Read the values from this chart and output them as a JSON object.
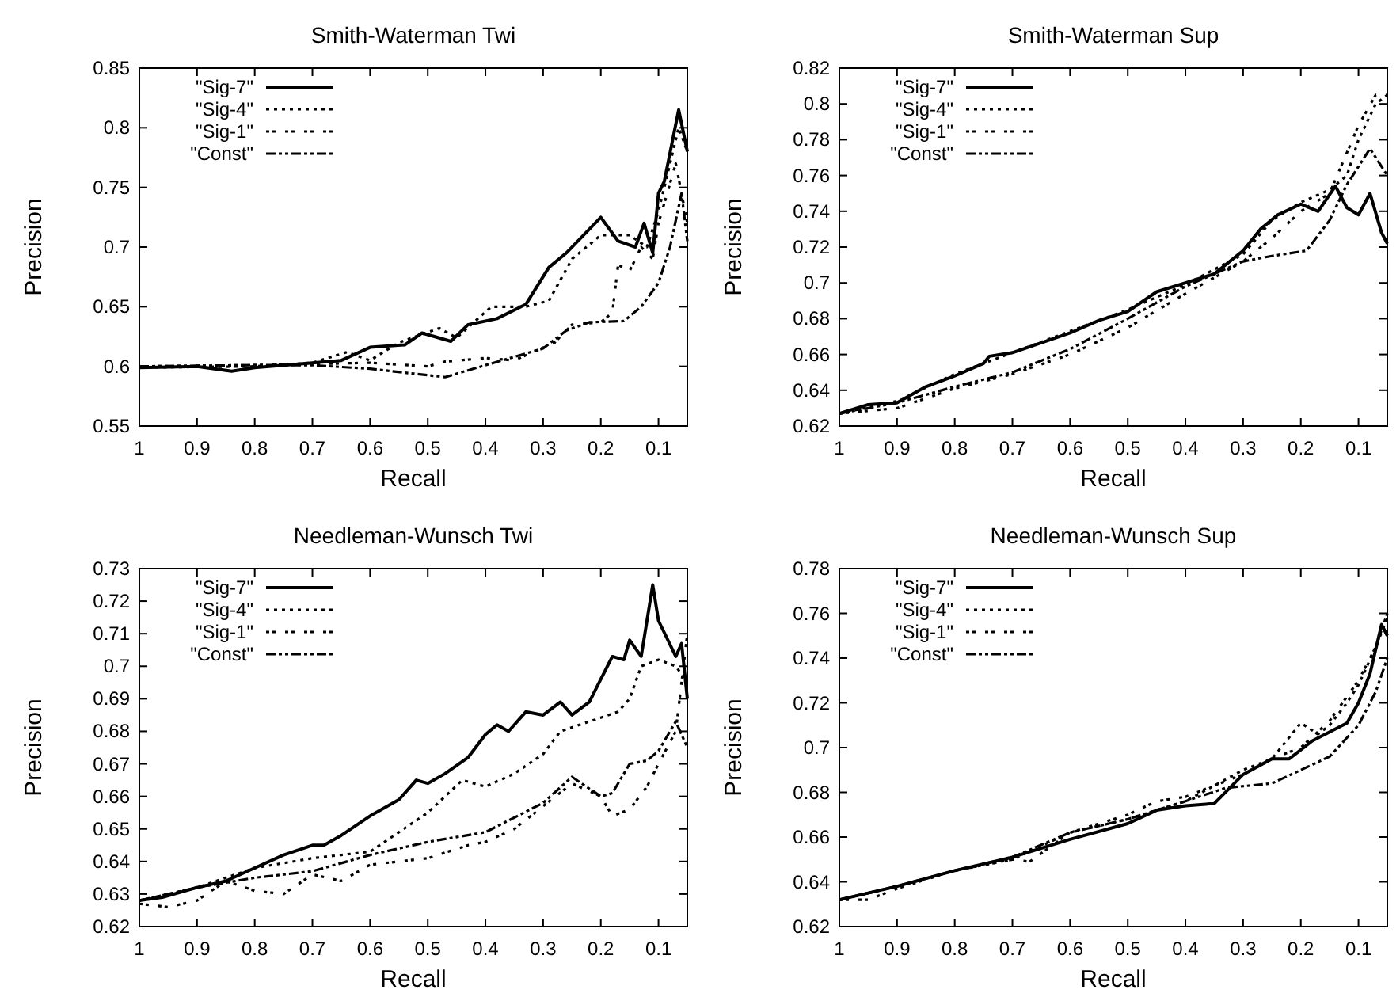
{
  "chart_data": [
    {
      "type": "line",
      "title": "Smith-Waterman Twi",
      "xlabel": "Recall",
      "ylabel": "Precision",
      "xlim": [
        1,
        0.05
      ],
      "xticks": [
        1,
        0.9,
        0.8,
        0.7,
        0.6,
        0.5,
        0.4,
        0.3,
        0.2,
        0.1
      ],
      "ylim": [
        0.55,
        0.85
      ],
      "yticks": [
        0.55,
        0.6,
        0.65,
        0.7,
        0.75,
        0.8,
        0.85
      ],
      "legend": "top left",
      "grid": false,
      "marker": "none",
      "series": [
        {
          "name": "\"Sig-7\"",
          "color": "#000000",
          "line_style": "solid",
          "x": [
            1,
            0.9,
            0.84,
            0.8,
            0.7,
            0.65,
            0.6,
            0.54,
            0.51,
            0.46,
            0.43,
            0.38,
            0.33,
            0.29,
            0.26,
            0.2,
            0.17,
            0.14,
            0.125,
            0.11,
            0.1,
            0.09,
            0.065,
            0.05
          ],
          "values": [
            0.599,
            0.6,
            0.596,
            0.599,
            0.603,
            0.605,
            0.616,
            0.618,
            0.628,
            0.621,
            0.635,
            0.64,
            0.652,
            0.683,
            0.695,
            0.725,
            0.705,
            0.7,
            0.72,
            0.695,
            0.745,
            0.755,
            0.815,
            0.78
          ]
        },
        {
          "name": "\"Sig-4\"",
          "color": "#000000",
          "line_style": "dotted",
          "x": [
            1,
            0.8,
            0.7,
            0.64,
            0.6,
            0.55,
            0.48,
            0.45,
            0.39,
            0.33,
            0.29,
            0.25,
            0.2,
            0.15,
            0.12,
            0.1,
            0.065,
            0.05
          ],
          "values": [
            0.599,
            0.6,
            0.603,
            0.612,
            0.605,
            0.62,
            0.632,
            0.624,
            0.65,
            0.65,
            0.655,
            0.69,
            0.71,
            0.71,
            0.7,
            0.73,
            0.8,
            0.78
          ]
        },
        {
          "name": "\"Sig-1\"",
          "color": "#000000",
          "line_style": "dashed",
          "x": [
            1,
            0.8,
            0.7,
            0.6,
            0.5,
            0.47,
            0.4,
            0.35,
            0.28,
            0.25,
            0.2,
            0.18,
            0.17,
            0.15,
            0.13,
            0.11,
            0.1,
            0.07,
            0.05
          ],
          "values": [
            0.6,
            0.601,
            0.602,
            0.603,
            0.6,
            0.604,
            0.607,
            0.605,
            0.62,
            0.635,
            0.637,
            0.645,
            0.685,
            0.68,
            0.7,
            0.69,
            0.72,
            0.77,
            0.72
          ]
        },
        {
          "name": "\"Const\"",
          "color": "#000000",
          "line_style": "dashdot",
          "x": [
            1,
            0.8,
            0.7,
            0.6,
            0.47,
            0.4,
            0.3,
            0.26,
            0.22,
            0.16,
            0.13,
            0.1,
            0.08,
            0.06,
            0.05
          ],
          "values": [
            0.6,
            0.601,
            0.601,
            0.598,
            0.591,
            0.601,
            0.615,
            0.63,
            0.637,
            0.638,
            0.65,
            0.67,
            0.7,
            0.745,
            0.705
          ]
        }
      ]
    },
    {
      "type": "line",
      "title": "Smith-Waterman Sup",
      "xlabel": "Recall",
      "ylabel": "Precision",
      "xlim": [
        1,
        0.05
      ],
      "xticks": [
        1,
        0.9,
        0.8,
        0.7,
        0.6,
        0.5,
        0.4,
        0.3,
        0.2,
        0.1
      ],
      "ylim": [
        0.62,
        0.82
      ],
      "yticks": [
        0.62,
        0.64,
        0.66,
        0.68,
        0.7,
        0.72,
        0.74,
        0.76,
        0.78,
        0.8,
        0.82
      ],
      "legend": "top left",
      "grid": false,
      "marker": "none",
      "series": [
        {
          "name": "\"Sig-7\"",
          "color": "#000000",
          "line_style": "solid",
          "x": [
            1,
            0.95,
            0.9,
            0.85,
            0.8,
            0.75,
            0.74,
            0.7,
            0.6,
            0.55,
            0.5,
            0.45,
            0.4,
            0.35,
            0.3,
            0.27,
            0.24,
            0.2,
            0.17,
            0.14,
            0.12,
            0.1,
            0.08,
            0.06,
            0.05
          ],
          "values": [
            0.627,
            0.632,
            0.633,
            0.642,
            0.648,
            0.655,
            0.659,
            0.661,
            0.672,
            0.679,
            0.684,
            0.695,
            0.7,
            0.705,
            0.718,
            0.73,
            0.738,
            0.744,
            0.74,
            0.754,
            0.742,
            0.738,
            0.75,
            0.728,
            0.722
          ]
        },
        {
          "name": "\"Sig-4\"",
          "color": "#000000",
          "line_style": "dotted",
          "x": [
            1,
            0.9,
            0.8,
            0.7,
            0.6,
            0.5,
            0.4,
            0.3,
            0.25,
            0.2,
            0.15,
            0.12,
            0.1,
            0.07,
            0.05
          ],
          "values": [
            0.627,
            0.634,
            0.649,
            0.661,
            0.673,
            0.685,
            0.699,
            0.716,
            0.735,
            0.745,
            0.752,
            0.76,
            0.78,
            0.8,
            0.805
          ]
        },
        {
          "name": "\"Sig-1\"",
          "color": "#000000",
          "line_style": "dashed",
          "x": [
            1,
            0.9,
            0.8,
            0.7,
            0.6,
            0.5,
            0.4,
            0.3,
            0.25,
            0.2,
            0.15,
            0.1,
            0.07,
            0.05
          ],
          "values": [
            0.627,
            0.63,
            0.641,
            0.649,
            0.66,
            0.675,
            0.694,
            0.712,
            0.725,
            0.74,
            0.75,
            0.788,
            0.805,
            0.805
          ]
        },
        {
          "name": "\"Const\"",
          "color": "#000000",
          "line_style": "dashdot",
          "x": [
            1,
            0.9,
            0.8,
            0.7,
            0.6,
            0.5,
            0.4,
            0.3,
            0.25,
            0.19,
            0.15,
            0.12,
            0.08,
            0.05
          ],
          "values": [
            0.627,
            0.633,
            0.642,
            0.65,
            0.663,
            0.68,
            0.698,
            0.712,
            0.715,
            0.718,
            0.735,
            0.755,
            0.775,
            0.76
          ]
        }
      ]
    },
    {
      "type": "line",
      "title": "Needleman-Wunsch Twi",
      "xlabel": "Recall",
      "ylabel": "Precision",
      "xlim": [
        1,
        0.05
      ],
      "xticks": [
        1,
        0.9,
        0.8,
        0.7,
        0.6,
        0.5,
        0.4,
        0.3,
        0.2,
        0.1
      ],
      "ylim": [
        0.62,
        0.73
      ],
      "yticks": [
        0.62,
        0.63,
        0.64,
        0.65,
        0.66,
        0.67,
        0.68,
        0.69,
        0.7,
        0.71,
        0.72,
        0.73
      ],
      "legend": "top left",
      "grid": false,
      "marker": "none",
      "series": [
        {
          "name": "\"Sig-7\"",
          "color": "#000000",
          "line_style": "solid",
          "x": [
            1,
            0.96,
            0.9,
            0.85,
            0.8,
            0.75,
            0.7,
            0.68,
            0.65,
            0.6,
            0.55,
            0.52,
            0.5,
            0.47,
            0.43,
            0.4,
            0.38,
            0.36,
            0.33,
            0.3,
            0.27,
            0.25,
            0.22,
            0.2,
            0.18,
            0.16,
            0.15,
            0.13,
            0.11,
            0.1,
            0.07,
            0.06,
            0.05
          ],
          "values": [
            0.628,
            0.629,
            0.632,
            0.634,
            0.638,
            0.642,
            0.645,
            0.645,
            0.648,
            0.654,
            0.659,
            0.665,
            0.664,
            0.667,
            0.672,
            0.679,
            0.682,
            0.68,
            0.686,
            0.685,
            0.689,
            0.685,
            0.689,
            0.696,
            0.703,
            0.702,
            0.708,
            0.703,
            0.725,
            0.714,
            0.703,
            0.707,
            0.69
          ]
        },
        {
          "name": "\"Sig-4\"",
          "color": "#000000",
          "line_style": "dotted",
          "x": [
            1,
            0.9,
            0.8,
            0.7,
            0.6,
            0.5,
            0.44,
            0.4,
            0.35,
            0.3,
            0.27,
            0.22,
            0.17,
            0.15,
            0.13,
            0.1,
            0.07,
            0.05
          ],
          "values": [
            0.628,
            0.632,
            0.638,
            0.641,
            0.643,
            0.655,
            0.665,
            0.663,
            0.667,
            0.673,
            0.68,
            0.683,
            0.686,
            0.69,
            0.7,
            0.702,
            0.7,
            0.695
          ]
        },
        {
          "name": "\"Sig-1\"",
          "color": "#000000",
          "line_style": "dashed",
          "x": [
            1,
            0.95,
            0.9,
            0.85,
            0.8,
            0.75,
            0.7,
            0.65,
            0.6,
            0.5,
            0.43,
            0.4,
            0.35,
            0.3,
            0.25,
            0.2,
            0.18,
            0.15,
            0.12,
            0.1,
            0.07,
            0.05
          ],
          "values": [
            0.627,
            0.626,
            0.628,
            0.634,
            0.631,
            0.63,
            0.636,
            0.634,
            0.639,
            0.641,
            0.645,
            0.646,
            0.65,
            0.657,
            0.664,
            0.66,
            0.654,
            0.656,
            0.663,
            0.67,
            0.68,
            0.71
          ]
        },
        {
          "name": "\"Const\"",
          "color": "#000000",
          "line_style": "dashdot",
          "x": [
            1,
            0.9,
            0.8,
            0.7,
            0.6,
            0.5,
            0.4,
            0.3,
            0.25,
            0.2,
            0.18,
            0.15,
            0.12,
            0.1,
            0.07,
            0.05
          ],
          "values": [
            0.628,
            0.632,
            0.635,
            0.637,
            0.642,
            0.646,
            0.649,
            0.658,
            0.666,
            0.66,
            0.661,
            0.67,
            0.671,
            0.674,
            0.683,
            0.675
          ]
        }
      ]
    },
    {
      "type": "line",
      "title": "Needleman-Wunsch Sup",
      "xlabel": "Recall",
      "ylabel": "Precision",
      "xlim": [
        1,
        0.05
      ],
      "xticks": [
        1,
        0.9,
        0.8,
        0.7,
        0.6,
        0.5,
        0.4,
        0.3,
        0.2,
        0.1
      ],
      "ylim": [
        0.62,
        0.78
      ],
      "yticks": [
        0.62,
        0.64,
        0.66,
        0.68,
        0.7,
        0.72,
        0.74,
        0.76,
        0.78
      ],
      "legend": "top left",
      "grid": false,
      "marker": "none",
      "series": [
        {
          "name": "\"Sig-7\"",
          "color": "#000000",
          "line_style": "solid",
          "x": [
            1,
            0.9,
            0.8,
            0.7,
            0.6,
            0.5,
            0.45,
            0.4,
            0.35,
            0.3,
            0.25,
            0.22,
            0.18,
            0.15,
            0.12,
            0.1,
            0.08,
            0.06,
            0.05
          ],
          "values": [
            0.632,
            0.638,
            0.645,
            0.651,
            0.659,
            0.666,
            0.672,
            0.674,
            0.675,
            0.688,
            0.695,
            0.695,
            0.703,
            0.707,
            0.711,
            0.72,
            0.733,
            0.755,
            0.75
          ]
        },
        {
          "name": "\"Sig-4\"",
          "color": "#000000",
          "line_style": "dotted",
          "x": [
            1,
            0.9,
            0.8,
            0.7,
            0.6,
            0.5,
            0.4,
            0.3,
            0.25,
            0.2,
            0.17,
            0.15,
            0.12,
            0.1,
            0.07,
            0.05
          ],
          "values": [
            0.632,
            0.638,
            0.645,
            0.65,
            0.662,
            0.668,
            0.676,
            0.69,
            0.695,
            0.711,
            0.706,
            0.71,
            0.72,
            0.728,
            0.745,
            0.758
          ]
        },
        {
          "name": "\"Sig-1\"",
          "color": "#000000",
          "line_style": "dashed",
          "x": [
            1,
            0.95,
            0.9,
            0.8,
            0.7,
            0.67,
            0.6,
            0.5,
            0.45,
            0.4,
            0.3,
            0.25,
            0.2,
            0.15,
            0.1,
            0.07,
            0.05
          ],
          "values": [
            0.632,
            0.632,
            0.637,
            0.645,
            0.65,
            0.649,
            0.662,
            0.67,
            0.676,
            0.678,
            0.688,
            0.695,
            0.7,
            0.712,
            0.73,
            0.745,
            0.76
          ]
        },
        {
          "name": "\"Const\"",
          "color": "#000000",
          "line_style": "dashdot",
          "x": [
            1,
            0.9,
            0.8,
            0.7,
            0.6,
            0.5,
            0.4,
            0.33,
            0.25,
            0.2,
            0.15,
            0.1,
            0.07,
            0.05
          ],
          "values": [
            0.632,
            0.638,
            0.645,
            0.651,
            0.662,
            0.668,
            0.676,
            0.682,
            0.684,
            0.69,
            0.696,
            0.71,
            0.725,
            0.74
          ]
        }
      ]
    }
  ]
}
